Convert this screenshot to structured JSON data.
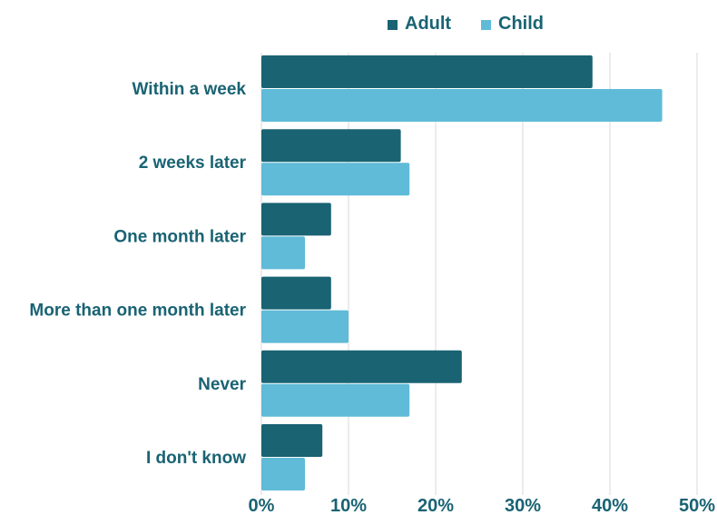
{
  "chart_data": {
    "type": "bar",
    "orientation": "horizontal",
    "categories": [
      "Within a week",
      "2 weeks later",
      "One month later",
      "More than one month later",
      "Never",
      "I don't know"
    ],
    "series": [
      {
        "name": "Adult",
        "values": [
          38,
          16,
          8,
          8,
          23,
          7
        ],
        "color": "#196373"
      },
      {
        "name": "Child",
        "values": [
          46,
          17,
          5,
          10,
          17,
          5
        ],
        "color": "#5fbbd7"
      }
    ],
    "xlim": [
      0,
      50
    ],
    "x_ticks": [
      0,
      10,
      20,
      30,
      40,
      50
    ],
    "x_tick_labels": [
      "0%",
      "10%",
      "20%",
      "30%",
      "40%",
      "50%"
    ],
    "grid": "vertical",
    "legend_position": "top",
    "label_color": "#196373",
    "grid_color": "#d9d9d9"
  }
}
